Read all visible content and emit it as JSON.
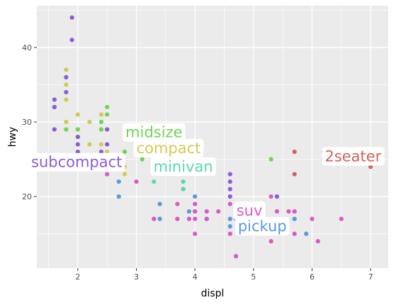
{
  "chart_data": {
    "type": "scatter",
    "xlabel": "displ",
    "ylabel": "hwy",
    "xlim": [
      1.3,
      7.3
    ],
    "ylim": [
      10.4,
      45.6
    ],
    "x_ticks": [
      2,
      3,
      4,
      5,
      6,
      7
    ],
    "y_ticks": [
      20,
      30,
      40
    ],
    "x_tick_labels": [
      "2",
      "3",
      "4",
      "5",
      "6",
      "7"
    ],
    "y_tick_labels": [
      "20",
      "30",
      "40"
    ],
    "grid": true,
    "legend": "none",
    "series": [
      {
        "name": "2seater",
        "color": "#D1645A",
        "x": [
          5.7,
          5.7,
          6.2,
          6.2,
          7.0
        ],
        "y": [
          26,
          23,
          26,
          25,
          24
        ]
      },
      {
        "name": "compact",
        "color": "#D2CB53",
        "x": [
          1.8,
          1.8,
          1.8,
          2.0,
          2.0,
          2.0,
          2.2,
          2.2,
          2.4,
          2.4,
          2.4,
          2.5,
          2.5,
          2.8,
          2.8,
          1.8
        ],
        "y": [
          37,
          35,
          33,
          31,
          29,
          28,
          30,
          27,
          31,
          27,
          29,
          26,
          29,
          24,
          23,
          30
        ]
      },
      {
        "name": "midsize",
        "color": "#6FD456",
        "x": [
          1.8,
          2.0,
          2.4,
          2.4,
          2.5,
          2.5,
          2.8,
          3.1,
          5.3
        ],
        "y": [
          29,
          29,
          30,
          29,
          31,
          32,
          26,
          25,
          25
        ]
      },
      {
        "name": "minivan",
        "color": "#58D8B0",
        "x": [
          3.3,
          3.3,
          3.8,
          3.8,
          3.8
        ],
        "y": [
          22,
          17,
          22,
          21,
          21
        ]
      },
      {
        "name": "pickup",
        "color": "#5A9BD8",
        "x": [
          2.7,
          2.7,
          3.4,
          3.4,
          3.9,
          4.0,
          4.0,
          4.2,
          4.6,
          4.6,
          4.7,
          4.7,
          5.2,
          5.7,
          5.9
        ],
        "y": [
          20,
          22,
          19,
          17,
          18,
          20,
          18,
          17,
          16,
          17,
          17,
          12,
          16,
          17,
          15
        ]
      },
      {
        "name": "subcompact",
        "color": "#8A5DD6",
        "x": [
          1.6,
          1.6,
          1.6,
          1.6,
          1.8,
          1.8,
          1.9,
          1.9,
          2.0,
          2.0,
          2.0,
          2.4,
          2.5,
          2.5,
          4.6,
          4.6,
          4.6,
          4.6,
          5.4
        ],
        "y": [
          33,
          32,
          29,
          32,
          36,
          34,
          44,
          41,
          27,
          28,
          26,
          26,
          29,
          27,
          23,
          22,
          21,
          20,
          20
        ]
      },
      {
        "name": "suv",
        "color": "#D95BC2",
        "x": [
          2.5,
          3.0,
          3.3,
          3.7,
          3.7,
          3.9,
          4.0,
          4.0,
          4.0,
          4.0,
          4.2,
          4.2,
          4.4,
          4.6,
          4.6,
          4.7,
          4.7,
          5.0,
          5.3,
          5.3,
          5.4,
          5.6,
          5.7,
          5.7,
          6.0,
          6.1,
          6.5
        ],
        "y": [
          23,
          22,
          17,
          19,
          17,
          17,
          19,
          18,
          17,
          15,
          18,
          17,
          18,
          19,
          15,
          12,
          17,
          19,
          20,
          14,
          18,
          18,
          18,
          15,
          17,
          14,
          17
        ]
      }
    ],
    "annotations": [
      {
        "text": "2seater",
        "color": "#D1645A",
        "x": 6.7,
        "y": 25.4
      },
      {
        "text": "compact",
        "color": "#D2CB53",
        "x": 3.55,
        "y": 26.5
      },
      {
        "text": "midsize",
        "color": "#6FD456",
        "x": 3.3,
        "y": 28.6
      },
      {
        "text": "minivan",
        "color": "#58D8B0",
        "x": 3.8,
        "y": 24.0
      },
      {
        "text": "pickup",
        "color": "#5A9BD8",
        "x": 5.15,
        "y": 16.0
      },
      {
        "text": "subcompact",
        "color": "#8A5DD6",
        "x": 1.98,
        "y": 24.6
      },
      {
        "text": "suv",
        "color": "#D95BC2",
        "x": 4.93,
        "y": 18.1
      }
    ]
  }
}
